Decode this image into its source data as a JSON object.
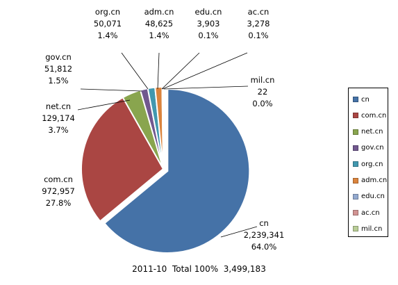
{
  "chart_data": {
    "type": "pie",
    "categories": [
      "cn",
      "com.cn",
      "net.cn",
      "gov.cn",
      "org.cn",
      "adm.cn",
      "edu.cn",
      "ac.cn",
      "mil.cn"
    ],
    "values": [
      2239341,
      972957,
      129174,
      51812,
      50071,
      48625,
      3903,
      3278,
      22
    ],
    "value_labels": [
      "2,239,341",
      "972,957",
      "129,174",
      "51,812",
      "50,071",
      "48,625",
      "3,903",
      "3,278",
      "22"
    ],
    "percent_labels": [
      "64.0%",
      "27.8%",
      "3.7%",
      "1.5%",
      "1.4%",
      "1.4%",
      "0.1%",
      "0.1%",
      "0.0%"
    ],
    "colors": [
      "#4572A7",
      "#AA4643",
      "#89A54E",
      "#71588F",
      "#4198AF",
      "#DB843D",
      "#93A9CF",
      "#D19392",
      "#B9CD96"
    ],
    "legend_position": "right",
    "exploded": "cn",
    "footer": {
      "period": "2011-10",
      "total_label": "Total 100%",
      "total_value": "3,499,183"
    }
  }
}
